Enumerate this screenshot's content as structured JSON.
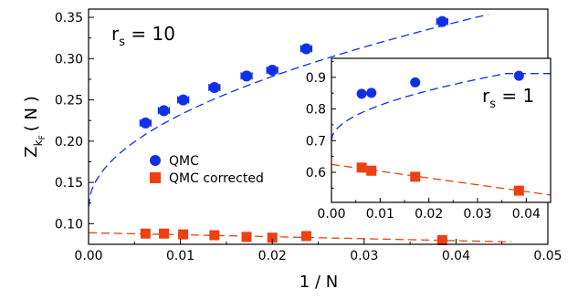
{
  "chart_data": [
    {
      "type": "scatter",
      "xlabel": "1 / N",
      "ylabel": {
        "base": "Z",
        "sub": "k",
        "subsub": "F",
        "rest": "( N )"
      },
      "xlim": [
        0.0,
        0.05
      ],
      "ylim": [
        0.075,
        0.36
      ],
      "xticks": [
        0.0,
        0.01,
        0.02,
        0.03,
        0.04,
        0.05
      ],
      "xtick_labels": [
        "0.00",
        "0.01",
        "0.02",
        "0.03",
        "0.04",
        "0.05"
      ],
      "yticks": [
        0.1,
        0.15,
        0.2,
        0.25,
        0.3,
        0.35
      ],
      "ytick_labels": [
        "0.10",
        "0.15",
        "0.20",
        "0.25",
        "0.30",
        "0.35"
      ],
      "annotation": {
        "base": "r",
        "sub": "s",
        "rest": " = 10"
      },
      "legend": {
        "position": "middle-left",
        "entries": [
          {
            "label": "QMC",
            "marker": "circle",
            "color": "#1030e8"
          },
          {
            "label": "QMC corrected",
            "marker": "square",
            "color": "#ee4010"
          }
        ]
      },
      "series": [
        {
          "name": "QMC",
          "marker": "circle",
          "color": "#1030e8",
          "x": [
            0.0062,
            0.0082,
            0.0103,
            0.0137,
            0.0172,
            0.02,
            0.0237,
            0.0385
          ],
          "y": [
            0.222,
            0.237,
            0.25,
            0.265,
            0.279,
            0.286,
            0.312,
            0.345
          ],
          "xerr": [
            0.0006,
            0.0006,
            0.0006,
            0.0006,
            0.0006,
            0.0006,
            0.0006,
            0.0006
          ]
        },
        {
          "name": "QMC corrected",
          "marker": "square",
          "color": "#ee4010",
          "x": [
            0.0062,
            0.0082,
            0.0103,
            0.0137,
            0.0172,
            0.02,
            0.0237,
            0.0385
          ],
          "y": [
            0.088,
            0.088,
            0.087,
            0.086,
            0.084,
            0.083,
            0.085,
            0.08
          ]
        }
      ],
      "fits": [
        {
          "color": "#1030e8",
          "model": "sqrt",
          "a": 0.12,
          "b": 1.12,
          "x_range": [
            0.0,
            0.0435
          ]
        },
        {
          "color": "#ee4010",
          "model": "linear",
          "a": 0.089,
          "b": -0.24,
          "x_range": [
            0.0,
            0.046
          ]
        }
      ]
    },
    {
      "type": "scatter",
      "xlim": [
        0.0,
        0.045
      ],
      "ylim": [
        0.505,
        0.96
      ],
      "xticks": [
        0.0,
        0.01,
        0.02,
        0.03,
        0.04
      ],
      "xtick_labels": [
        "0.00",
        "0.01",
        "0.02",
        "0.03",
        "0.04"
      ],
      "yticks": [
        0.6,
        0.7,
        0.8,
        0.9
      ],
      "ytick_labels": [
        "0.6",
        "0.7",
        "0.8",
        "0.9"
      ],
      "annotation": {
        "base": "r",
        "sub": "s",
        "rest": " = 1"
      },
      "series": [
        {
          "name": "QMC",
          "marker": "circle",
          "color": "#1030e8",
          "x": [
            0.0062,
            0.0082,
            0.0172,
            0.0385
          ],
          "y": [
            0.848,
            0.851,
            0.884,
            0.905
          ],
          "xerr": [
            0.0006,
            0.0006,
            0.0006,
            0.0006
          ]
        },
        {
          "name": "QMC corrected",
          "marker": "square",
          "color": "#ee4010",
          "x": [
            0.0062,
            0.0082,
            0.0172,
            0.0385
          ],
          "y": [
            0.615,
            0.605,
            0.586,
            0.542
          ]
        }
      ],
      "fits": [
        {
          "color": "#1030e8",
          "model": "sqrt",
          "a": 0.7,
          "b": 1.12,
          "cap": 0.912,
          "x_range": [
            0.0,
            0.045
          ]
        },
        {
          "color": "#ee4010",
          "model": "linear",
          "a": 0.625,
          "b": -2.15,
          "x_range": [
            0.0,
            0.045
          ]
        }
      ]
    }
  ]
}
